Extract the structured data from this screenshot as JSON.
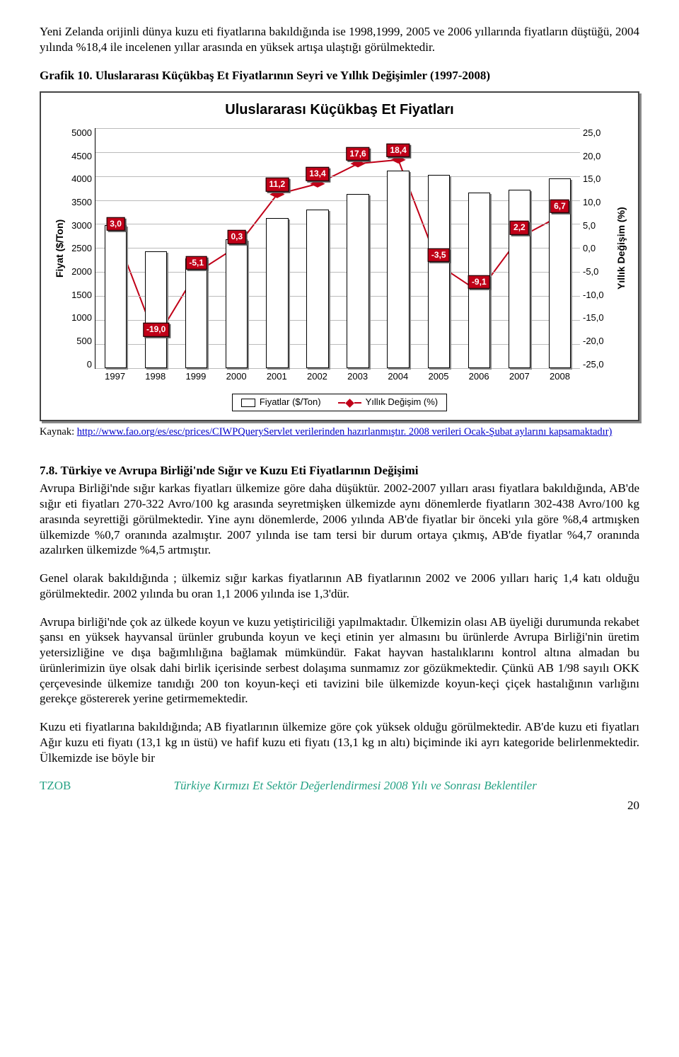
{
  "intro_para": "Yeni Zelanda orijinli dünya kuzu eti fiyatlarına bakıldığında ise 1998,1999, 2005 ve 2006 yıllarında fiyatların düştüğü, 2004 yılında %18,4 ile incelenen yıllar arasında en yüksek artışa ulaştığı görülmektedir.",
  "chart_heading": "Grafik 10. Uluslararası Küçükbaş Et Fiyatlarının Seyri ve Yıllık Değişimler (1997-2008)",
  "chart": {
    "title": "Uluslararası Küçükbaş Et Fiyatları",
    "y1_label": "Fiyat ($/Ton)",
    "y2_label": "Yıllık Değişim (%)",
    "x_categories": [
      "1997",
      "1998",
      "1999",
      "2000",
      "2001",
      "2002",
      "2003",
      "2004",
      "2005",
      "2006",
      "2007",
      "2008"
    ],
    "y1_ticks": [
      "5000",
      "4500",
      "4000",
      "3500",
      "3000",
      "2500",
      "2000",
      "1500",
      "1000",
      "500",
      "0"
    ],
    "y2_ticks": [
      "25,0",
      "20,0",
      "15,0",
      "10,0",
      "5,0",
      "0,0",
      "-5,0",
      "-10,0",
      "-15,0",
      "-20,0",
      "-25,0"
    ],
    "bar_values": [
      2980,
      2430,
      2280,
      2680,
      3130,
      3300,
      3620,
      4120,
      4020,
      3660,
      3710,
      3950
    ],
    "y1_max": 5000,
    "line_values": [
      3.0,
      -19.0,
      -5.1,
      0.3,
      11.2,
      13.4,
      17.6,
      18.4,
      -3.5,
      -9.1,
      2.2,
      6.7
    ],
    "line_labels": [
      "3,0",
      "-19,0",
      "-5,1",
      "0,3",
      "11,2",
      "13,4",
      "17,6",
      "18,4",
      "-3,5",
      "-9,1",
      "2,2",
      "6,7"
    ],
    "y2_min": -25,
    "y2_max": 25,
    "bar_fill": "#ffffff",
    "bar_border": "#000000",
    "bar_shadow": "#888888",
    "line_color": "#c00018",
    "grid_color": "#bbbbbb",
    "legend_bar": "Fiyatlar ($/Ton)",
    "legend_line": "Yıllık Değişim (%)"
  },
  "source_prefix": "Kaynak: ",
  "source_link": "http://www.fao.org/es/esc/prices/CIWPQueryServlet verilerinden hazırlanmıştır.",
  "source_tail": " 2008 verileri Ocak-Şubat aylarını kapsamaktadır)",
  "section_heading": "7.8. Türkiye ve Avrupa Birliği'nde Sığır ve Kuzu Eti Fiyatlarının Değişimi",
  "body_p1": "Avrupa Birliği'nde sığır karkas fiyatları ülkemize göre daha düşüktür. 2002-2007 yılları arası fiyatlara bakıldığında, AB'de sığır eti fiyatları 270-322 Avro/100 kg arasında seyretmişken ülkemizde aynı dönemlerde fiyatların 302-438 Avro/100 kg arasında seyrettiği görülmektedir. Yine aynı dönemlerde, 2006 yılında AB'de fiyatlar bir önceki yıla göre %8,4 artmışken ülkemizde %0,7 oranında azalmıştır. 2007 yılında ise tam tersi bir durum ortaya çıkmış, AB'de fiyatlar %4,7 oranında azalırken ülkemizde %4,5 artmıştır.",
  "body_p2": "Genel olarak bakıldığında ; ülkemiz sığır karkas fiyatlarının AB fiyatlarının 2002 ve 2006 yılları hariç 1,4 katı olduğu görülmektedir. 2002 yılında bu oran 1,1 2006 yılında ise 1,3'dür.",
  "body_p3": "Avrupa birliği'nde çok az ülkede koyun ve kuzu yetiştiriciliği yapılmaktadır. Ülkemizin olası AB üyeliği durumunda rekabet şansı en yüksek hayvansal ürünler grubunda koyun ve keçi etinin yer almasını bu ürünlerde Avrupa Birliği'nin üretim yetersizliğine ve dışa bağımlılığına bağlamak mümkündür. Fakat hayvan hastalıklarını kontrol altına almadan bu ürünlerimizin üye olsak dahi birlik içerisinde serbest dolaşıma sunmamız zor gözükmektedir. Çünkü AB 1/98 sayılı OKK çerçevesinde ülkemize tanıdığı 200 ton koyun-keçi eti tavizini bile ülkemizde koyun-keçi çiçek hastalığının varlığını gerekçe göstererek yerine getirmemektedir.",
  "body_p4": "Kuzu eti fiyatlarına bakıldığında; AB fiyatlarının ülkemize göre çok yüksek olduğu görülmektedir. AB'de kuzu eti fiyatları Ağır kuzu eti fiyatı (13,1 kg ın üstü) ve hafif kuzu eti fiyatı (13,1 kg ın altı) biçiminde iki ayrı kategoride belirlenmektedir. Ülkemizde ise böyle bir",
  "footer_left": "TZOB",
  "footer_center": "Türkiye Kırmızı Et Sektör Değerlendirmesi 2008 Yılı ve Sonrası Beklentiler",
  "page_number": "20"
}
